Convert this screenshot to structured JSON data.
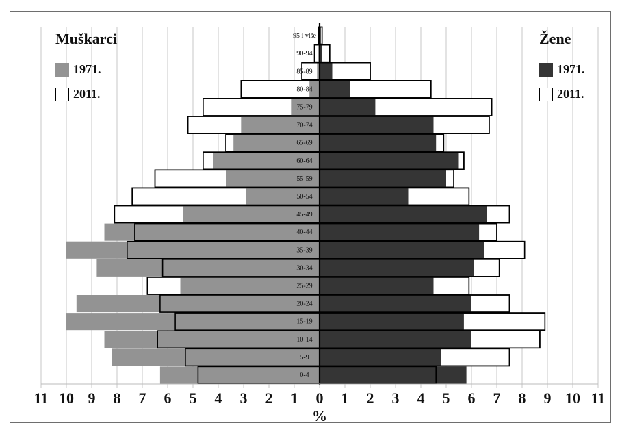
{
  "chart_data": {
    "type": "bar",
    "orientation": "horizontal",
    "layout": "population-pyramid",
    "categories": [
      "0-4",
      "5-9",
      "10-14",
      "15-19",
      "20-24",
      "25-29",
      "30-34",
      "35-39",
      "40-44",
      "45-49",
      "50-54",
      "55-59",
      "60-64",
      "65-69",
      "70-74",
      "75-79",
      "80-84",
      "85-89",
      "90-94",
      "95 i više"
    ],
    "groups": [
      {
        "name": "Muškarci",
        "side": "left",
        "series": [
          {
            "name": "1971.",
            "values": [
              6.3,
              8.2,
              8.5,
              10.0,
              9.6,
              5.5,
              8.8,
              10.0,
              8.5,
              5.4,
              2.9,
              3.7,
              4.2,
              3.4,
              3.1,
              1.1,
              0.4,
              0.1,
              0.05,
              0.02
            ]
          },
          {
            "name": "2011.",
            "values": [
              4.8,
              5.3,
              6.4,
              5.7,
              6.3,
              6.8,
              6.2,
              7.6,
              7.3,
              8.1,
              7.4,
              6.5,
              4.6,
              3.7,
              5.2,
              4.6,
              3.1,
              0.7,
              0.2,
              0.05
            ]
          }
        ]
      },
      {
        "name": "Žene",
        "side": "right",
        "series": [
          {
            "name": "1971.",
            "values": [
              5.8,
              4.8,
              6.0,
              5.7,
              6.0,
              4.5,
              6.1,
              6.5,
              6.3,
              6.6,
              3.5,
              5.0,
              5.5,
              4.6,
              4.5,
              2.2,
              1.2,
              0.5,
              0.1,
              0.05
            ]
          },
          {
            "name": "2011.",
            "values": [
              4.6,
              7.5,
              8.7,
              8.9,
              7.5,
              5.9,
              7.1,
              8.1,
              7.0,
              7.5,
              5.9,
              5.3,
              5.7,
              4.9,
              6.7,
              6.8,
              4.4,
              2.0,
              0.4,
              0.1
            ]
          }
        ]
      }
    ],
    "xlabel": "%",
    "xlim": [
      0,
      11
    ],
    "xticks": [
      11,
      10,
      9,
      8,
      7,
      6,
      5,
      4,
      3,
      2,
      1,
      0,
      1,
      2,
      3,
      4,
      5,
      6,
      7,
      8,
      9,
      10,
      11
    ],
    "grid": "vertical"
  },
  "titles": {
    "left": "Muškarci",
    "right": "Žene"
  },
  "legend": {
    "left": [
      {
        "label": "1971."
      },
      {
        "label": "2011."
      }
    ],
    "right": [
      {
        "label": "1971."
      },
      {
        "label": "2011."
      }
    ]
  },
  "colors": {
    "male_1971": "#939393",
    "female_1971": "#353535",
    "outline_2011": "#000000",
    "fill_2011": "#ffffff",
    "grid": "#c7c7c7",
    "frame": "#6e6e6e"
  }
}
